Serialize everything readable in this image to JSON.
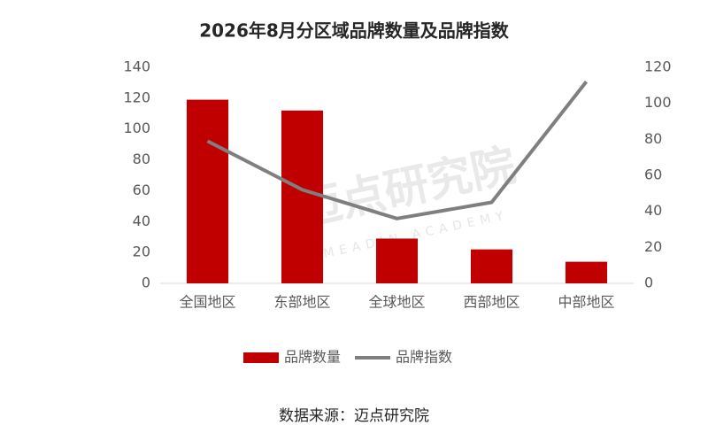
{
  "chart_data": {
    "type": "bar",
    "title": "2026年8月分区域品牌数量及品牌指数",
    "categories": [
      "全国地区",
      "东部地区",
      "全球地区",
      "西部地区",
      "中部地区"
    ],
    "series": [
      {
        "name": "品牌数量",
        "color": "#c00000",
        "values": [
          119,
          112,
          29,
          22,
          14
        ]
      },
      {
        "name": "品牌指数",
        "color": "#7f7f7f",
        "type": "line",
        "axis": "y2",
        "values": [
          79,
          52,
          36,
          45,
          112
        ]
      }
    ],
    "ylim": [
      0,
      140
    ],
    "yticks": [
      0,
      20,
      40,
      60,
      80,
      100,
      120,
      140
    ],
    "y2lim": [
      0,
      120
    ],
    "y2ticks": [
      0,
      20,
      40,
      60,
      80,
      100,
      120
    ],
    "grid": false,
    "legend": "bottom",
    "source": "数据来源：迈点研究院",
    "watermark": "迈点研究院",
    "watermark_en": "MEADIN ACADEMY"
  }
}
